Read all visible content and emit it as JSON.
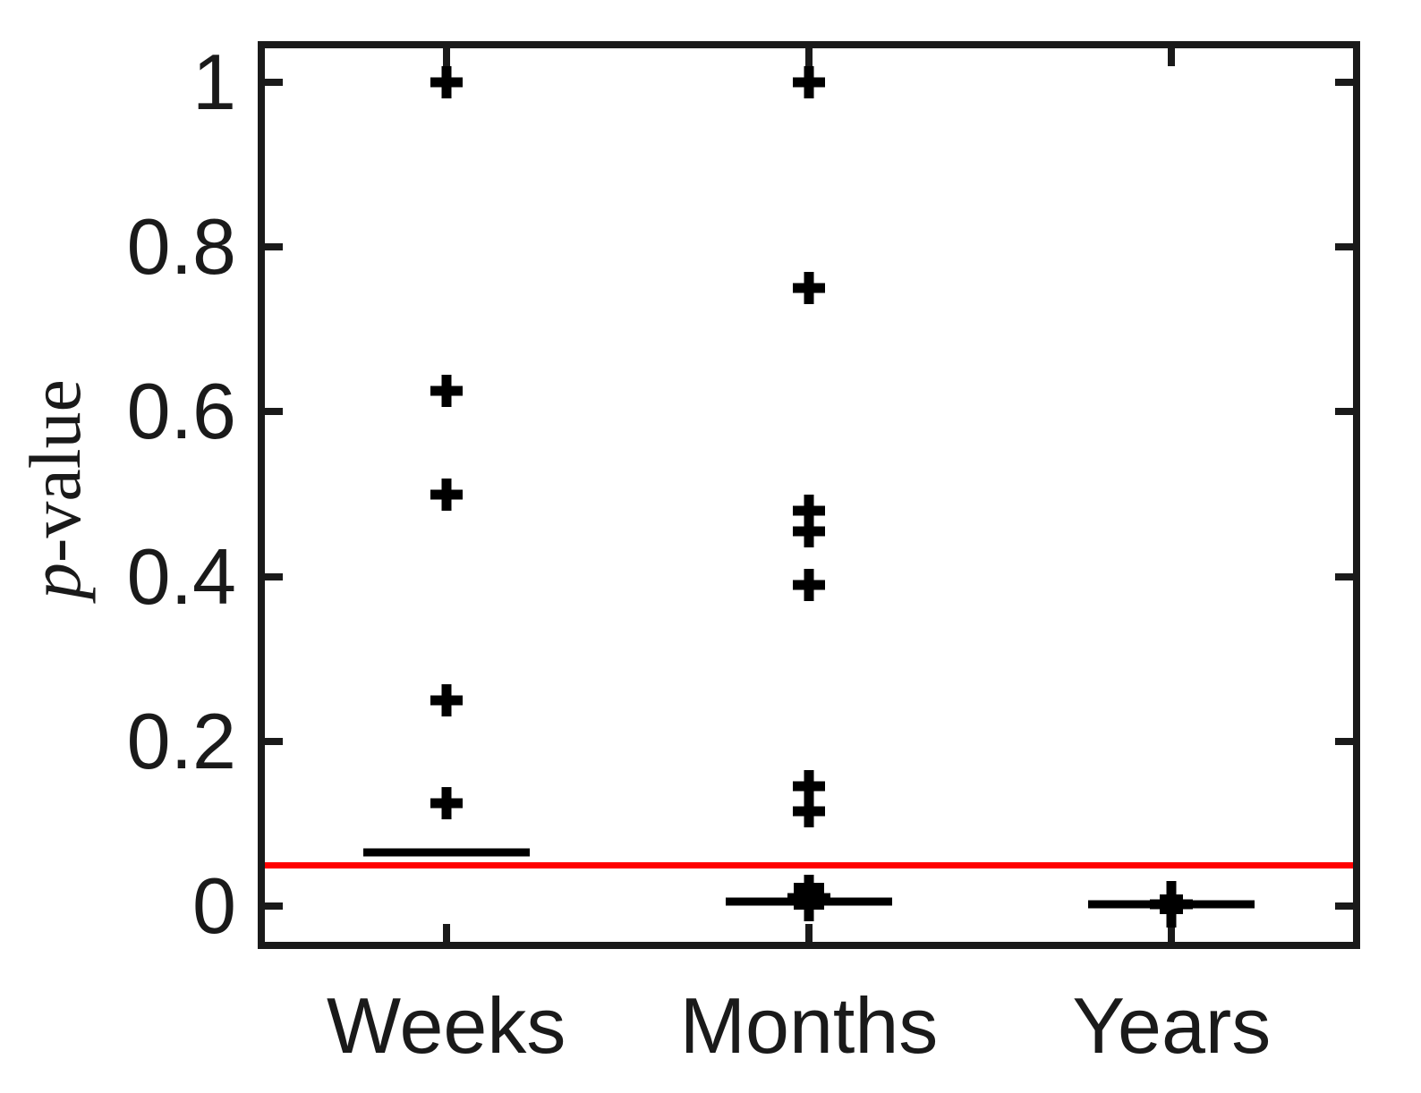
{
  "chart_data": {
    "type": "boxplot",
    "title": "",
    "xlabel": "",
    "ylabel": "p-value",
    "ylabel_parts": {
      "italic": "p",
      "rest": "-value"
    },
    "grid": false,
    "legend": null,
    "ylim": [
      -0.05,
      1.05
    ],
    "yticks": [
      {
        "value": 1.0,
        "label": "1"
      },
      {
        "value": 0.8,
        "label": "0.8"
      },
      {
        "value": 0.6,
        "label": "0.6"
      },
      {
        "value": 0.4,
        "label": "0.4"
      },
      {
        "value": 0.2,
        "label": "0.2"
      },
      {
        "value": 0.0,
        "label": "0"
      }
    ],
    "categories": [
      "Weeks",
      "Months",
      "Years"
    ],
    "significance_line": {
      "value": 0.05,
      "color": "#ff0000"
    },
    "groups": [
      {
        "label": "Weeks",
        "outlier_plus_values": [
          1.0,
          0.625,
          0.5,
          0.25,
          0.125
        ],
        "median_value": 0.065,
        "box_value": null,
        "box_size": 0,
        "box_plus_value": null
      },
      {
        "label": "Months",
        "outlier_plus_values": [
          1.0,
          0.75,
          0.48,
          0.455,
          0.39,
          0.145,
          0.115
        ],
        "median_value": 0.005,
        "box_value": 0.012,
        "box_size": 34,
        "box_plus_value": 0.01
      },
      {
        "label": "Years",
        "outlier_plus_values": [],
        "median_value": 0.002,
        "box_value": 0.002,
        "box_size": 26,
        "box_plus_value": 0.002
      }
    ],
    "colors": {
      "marker": "#000000",
      "axis": "#1a1a1a",
      "significance_line": "#ff0000",
      "background": "#ffffff"
    }
  }
}
